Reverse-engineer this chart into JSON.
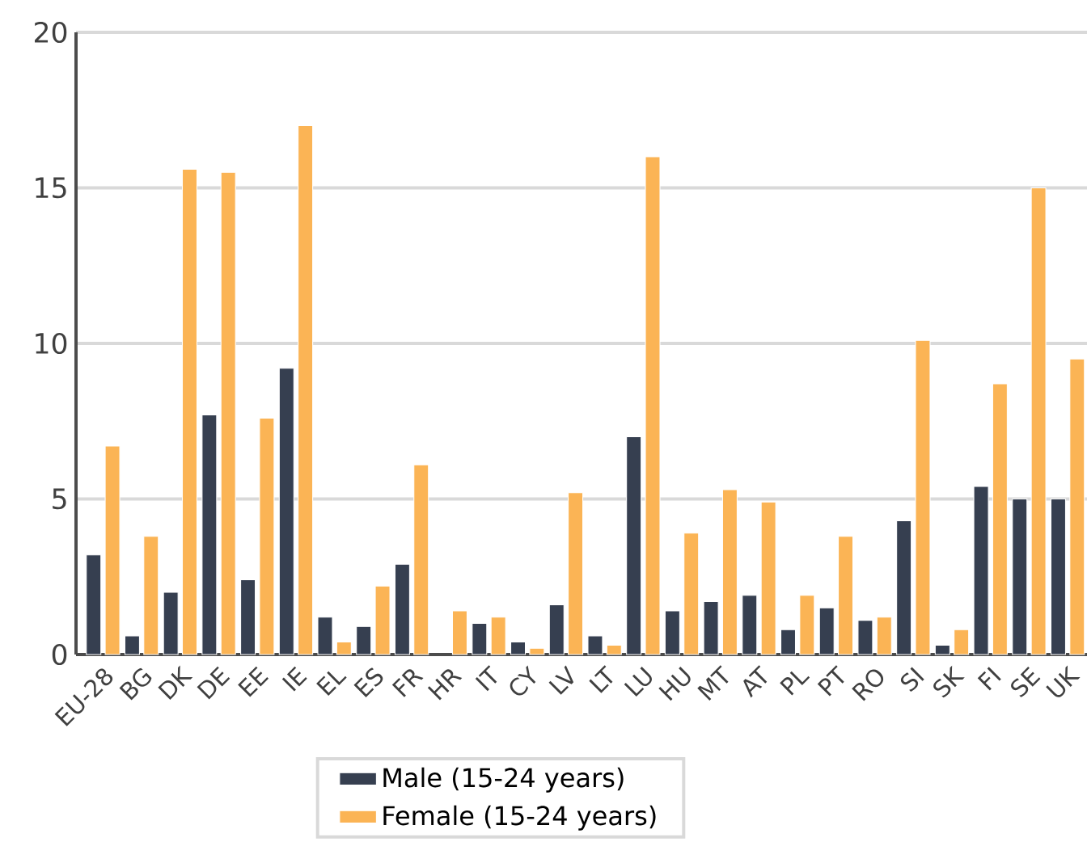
{
  "chart_data": {
    "type": "bar",
    "categories": [
      "EU-28",
      "BG",
      "DK",
      "DE",
      "EE",
      "IE",
      "EL",
      "ES",
      "FR",
      "HR",
      "IT",
      "CY",
      "LV",
      "LT",
      "LU",
      "HU",
      "MT",
      "AT",
      "PL",
      "PT",
      "RO",
      "SI",
      "SK",
      "FI",
      "SE",
      "UK"
    ],
    "series": [
      {
        "name": "Male (15-24 years)",
        "color": "#363f50",
        "values": [
          3.2,
          0.6,
          2.0,
          7.7,
          2.4,
          9.2,
          1.2,
          0.9,
          2.9,
          null,
          1.0,
          0.4,
          1.6,
          0.6,
          7.0,
          1.4,
          1.7,
          1.9,
          0.8,
          1.5,
          1.1,
          4.3,
          0.3,
          5.4,
          5.0,
          5.0
        ]
      },
      {
        "name": "Female (15-24 years)",
        "color": "#fbb455",
        "values": [
          6.7,
          3.8,
          15.6,
          15.5,
          7.6,
          17.0,
          0.4,
          2.2,
          6.1,
          1.4,
          1.2,
          0.2,
          5.2,
          0.3,
          16.0,
          3.9,
          5.3,
          4.9,
          1.9,
          3.8,
          1.2,
          10.1,
          0.8,
          8.7,
          15.0,
          9.5
        ]
      }
    ],
    "ylim": [
      0,
      20
    ],
    "yticks": [
      0,
      5,
      10,
      15,
      20
    ],
    "grid": "y",
    "legend": "bottom"
  }
}
